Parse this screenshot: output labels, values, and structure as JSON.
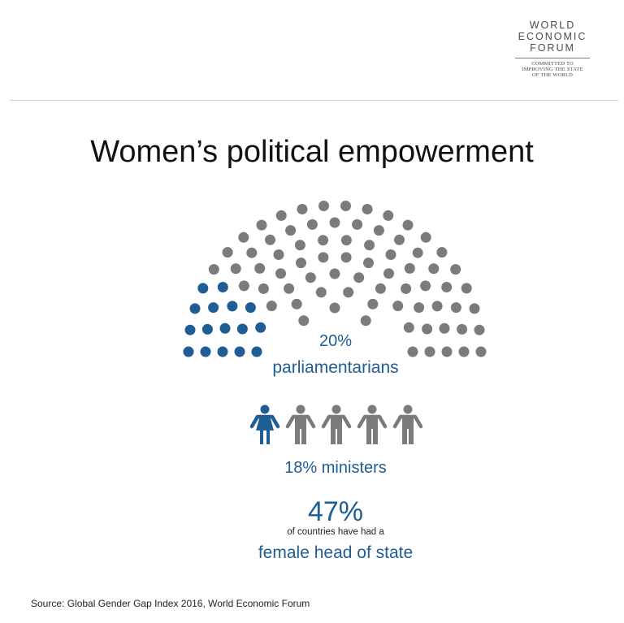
{
  "logo": {
    "wordmark": "WORLD\nECONOMIC\nFORUM",
    "tagline": "COMMITTED TO\nIMPROVING THE STATE\nOF THE WORLD"
  },
  "title": "Women’s political empowerment",
  "colors": {
    "women": "#1f5d95",
    "men": "#7b7b7b",
    "title": "#111111",
    "label": "#1f5d95"
  },
  "chart_data": [
    {
      "type": "waffle-hemicycle",
      "title": "Women’s political empowerment",
      "metric_label": "parliamentarians",
      "value_text": "20%",
      "values": {
        "women_pct": 20,
        "men_pct": 80
      },
      "series": [
        {
          "name": "women",
          "color": "#1f5d95",
          "share": 0.2
        },
        {
          "name": "men",
          "color": "#7b7b7b",
          "share": 0.8
        }
      ]
    },
    {
      "type": "pictogram",
      "metric_label": "18% ministers",
      "value": 18,
      "icons_total": 5,
      "icons_highlighted": 1,
      "icon_women": "woman-figure-icon",
      "icon_men": "man-figure-icon"
    },
    {
      "type": "kpi",
      "value_text": "47%",
      "value": 47,
      "subtitle": "of countries have had a",
      "metric_label": "female head of state"
    }
  ],
  "source": "Source:  Global Gender Gap Index 2016, World Economic Forum"
}
